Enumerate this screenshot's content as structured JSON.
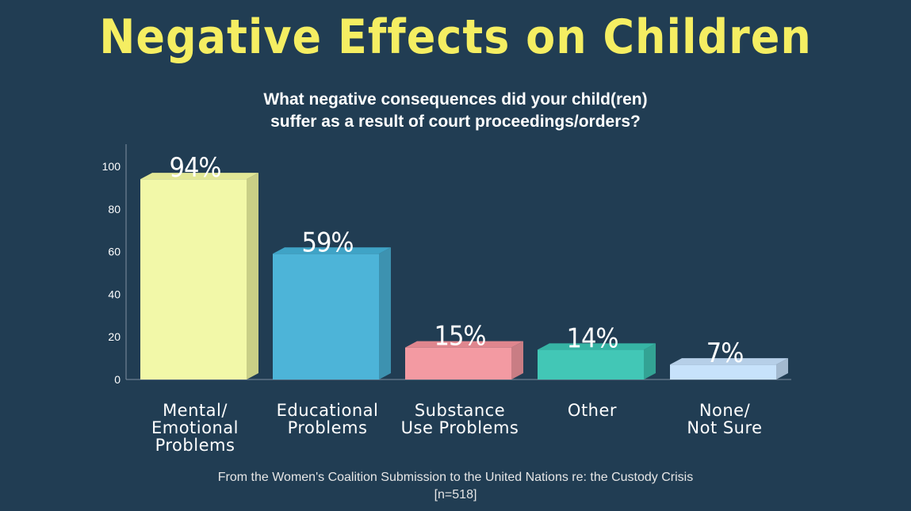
{
  "title": "Negative Effects on Children",
  "subtitle_lines": [
    "What negative consequences did your child(ren)",
    "suffer as a result of court proceedings/orders?"
  ],
  "source_lines": [
    "From the Women's Coalition Submission to the United Nations re: the Custody Crisis",
    "[n=518]"
  ],
  "colors": {
    "background": "#213d53",
    "title": "#f5ee62"
  },
  "chart_data": {
    "type": "bar",
    "categories": [
      [
        "Mental/",
        "Emotional",
        "Problems"
      ],
      [
        "Educational",
        "Problems"
      ],
      [
        "Substance",
        "Use Problems"
      ],
      [
        "Other"
      ],
      [
        "None/",
        "Not Sure"
      ]
    ],
    "values": [
      94,
      59,
      15,
      14,
      7
    ],
    "data_labels": [
      "94%",
      "59%",
      "15%",
      "14%",
      "7%"
    ],
    "colors": [
      "#f2f8a8",
      "#4db4d8",
      "#f39aa2",
      "#42c7b6",
      "#c7e2fb"
    ],
    "side_colors": [
      "#c9cf86",
      "#3d92b0",
      "#c97d84",
      "#33a394",
      "#a3b9cf"
    ],
    "top_colors": [
      "#e2e896",
      "#3fa3c6",
      "#e0868e",
      "#36b4a4",
      "#b6cfe8"
    ],
    "yticks": [
      0,
      20,
      40,
      60,
      80,
      100
    ],
    "ylim": [
      0,
      110
    ],
    "grid": false,
    "legend": "none"
  }
}
